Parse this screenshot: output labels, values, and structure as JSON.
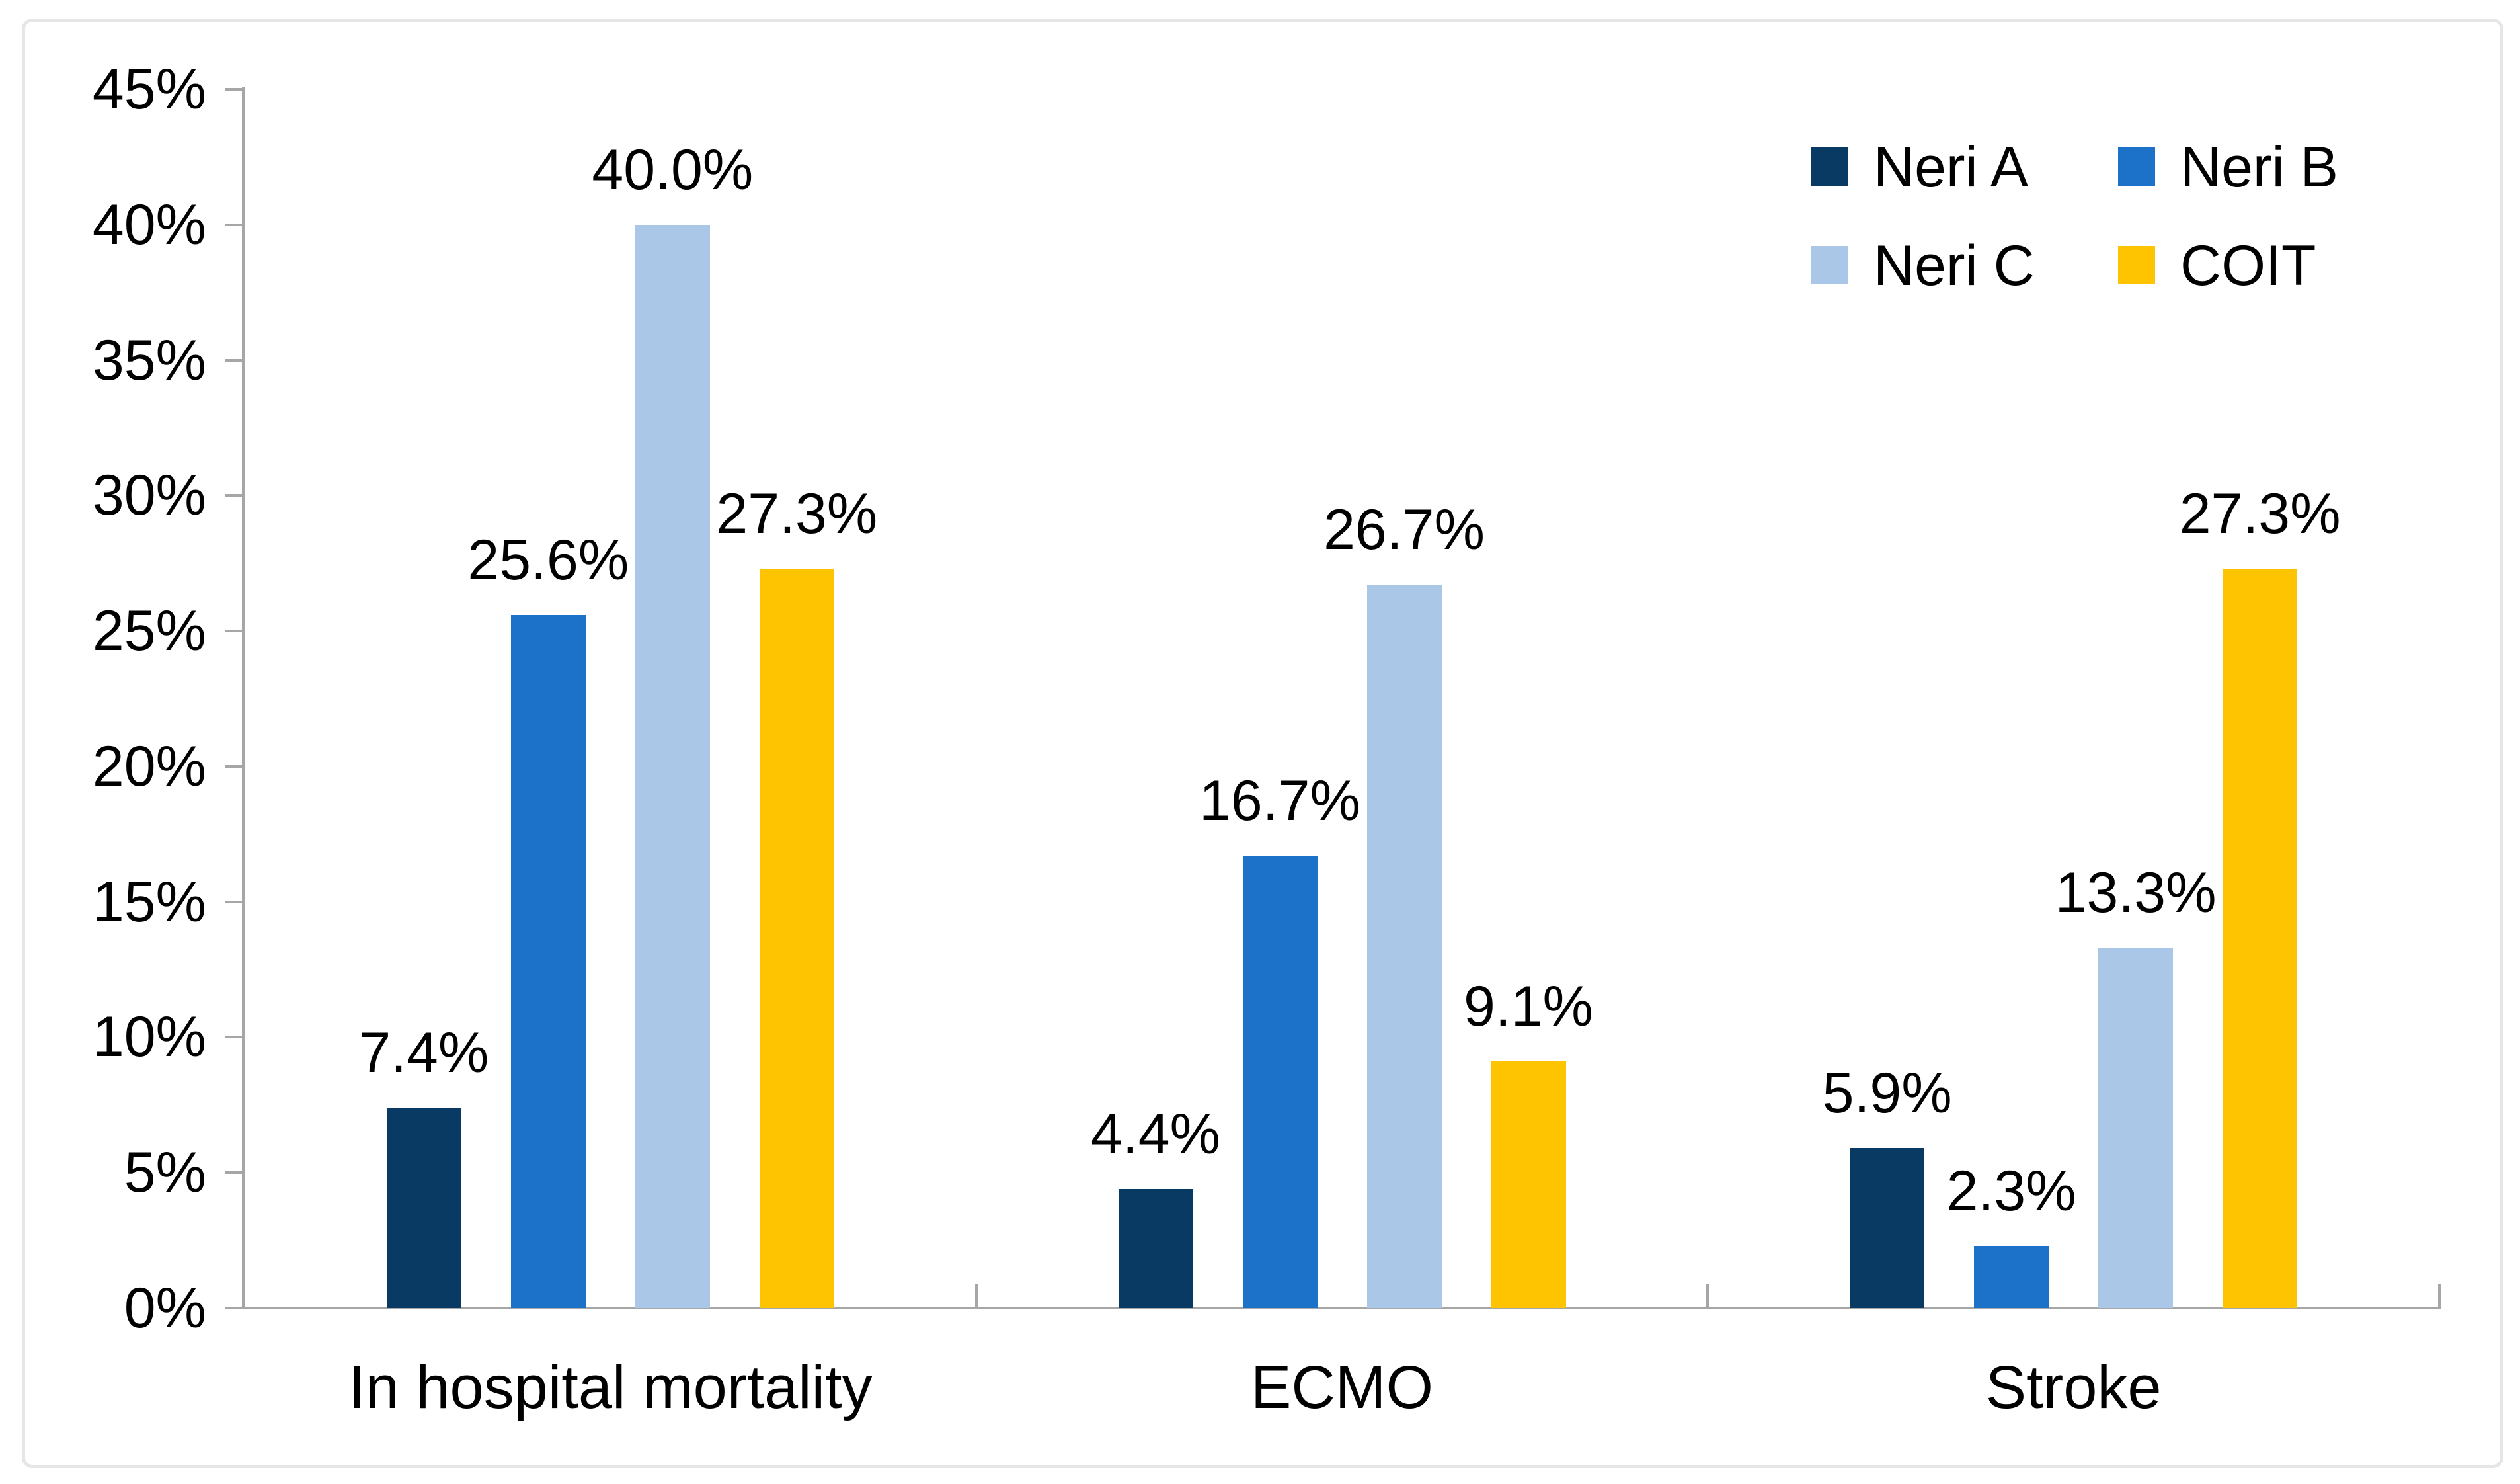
{
  "chart_data": {
    "type": "bar",
    "title": "",
    "xlabel": "",
    "ylabel": "",
    "categories": [
      "In hospital mortality",
      "ECMO",
      "Stroke"
    ],
    "series": [
      {
        "name": "Neri A",
        "color": "#093a63",
        "values": [
          7.4,
          4.4,
          5.9
        ],
        "labels": [
          "7.4%",
          "4.4%",
          "5.9%"
        ]
      },
      {
        "name": "Neri B",
        "color": "#1c72c8",
        "values": [
          25.6,
          16.7,
          2.3
        ],
        "labels": [
          "25.6%",
          "16.7%",
          "2.3%"
        ]
      },
      {
        "name": "Neri C",
        "color": "#abc7e8",
        "values": [
          40.0,
          26.7,
          13.3
        ],
        "labels": [
          "40.0%",
          "26.7%",
          "13.3%"
        ]
      },
      {
        "name": "COIT",
        "color": "#fec401",
        "values": [
          27.3,
          9.1,
          27.3
        ],
        "labels": [
          "27.3%",
          "9.1%",
          "27.3%"
        ]
      }
    ],
    "ylim": [
      0,
      45
    ],
    "y_ticks": [
      "0%",
      "5%",
      "10%",
      "15%",
      "20%",
      "25%",
      "30%",
      "35%",
      "40%",
      "45%"
    ],
    "grid": false,
    "legend_position": "top-right",
    "legend_rows": [
      [
        "Neri A",
        "Neri B"
      ],
      [
        "Neri C",
        "COIT"
      ]
    ]
  },
  "style": {
    "axis_color": "#a6a6a6",
    "text_color": "#000000",
    "frame_color": "#e6e6e6",
    "background": "#ffffff"
  }
}
